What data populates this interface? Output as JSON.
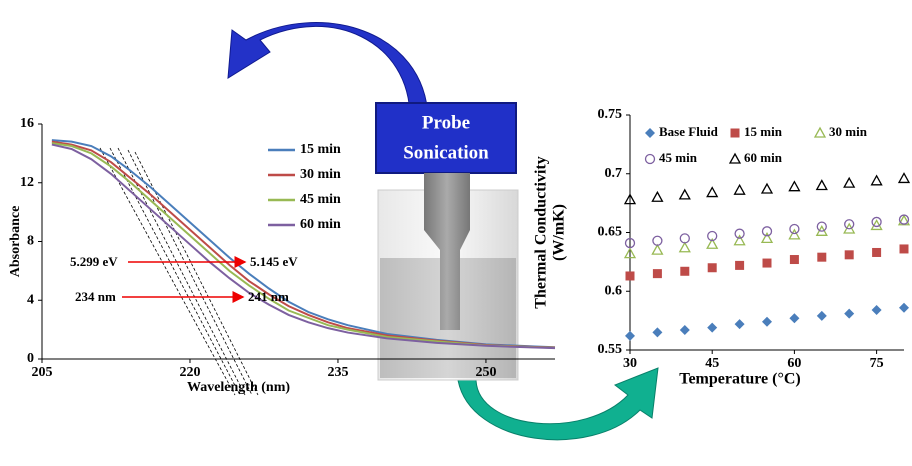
{
  "chart_data": [
    {
      "type": "line",
      "xlabel": "Wavelength (nm)",
      "ylabel": "Absorbance",
      "x": [
        206,
        208,
        210,
        212,
        214,
        216,
        218,
        220,
        222,
        224,
        226,
        228,
        230,
        232,
        234,
        236,
        240,
        245,
        250,
        255,
        257
      ],
      "xlim": [
        205,
        257
      ],
      "xticks": [
        205,
        220,
        235,
        250
      ],
      "ylim": [
        0,
        16
      ],
      "yticks": [
        0,
        4,
        8,
        12,
        16
      ],
      "annotations": [
        "5.299 eV",
        "5.145 eV",
        "234 nm",
        "241 nm"
      ],
      "series": [
        {
          "name": "15 min",
          "color": "#4a7ebb",
          "values": [
            14.9,
            14.8,
            14.5,
            13.8,
            12.8,
            11.7,
            10.5,
            9.3,
            8.1,
            6.9,
            5.8,
            4.8,
            3.9,
            3.2,
            2.7,
            2.3,
            1.7,
            1.3,
            1.0,
            0.85,
            0.8
          ]
        },
        {
          "name": "30 min",
          "color": "#be4b48",
          "values": [
            14.8,
            14.6,
            14.2,
            13.4,
            12.3,
            11.2,
            10.0,
            8.8,
            7.6,
            6.4,
            5.3,
            4.4,
            3.6,
            3.0,
            2.5,
            2.1,
            1.6,
            1.25,
            0.95,
            0.82,
            0.78
          ]
        },
        {
          "name": "45 min",
          "color": "#98b954",
          "values": [
            14.7,
            14.5,
            14.0,
            13.1,
            12.0,
            10.8,
            9.6,
            8.4,
            7.2,
            6.0,
            5.0,
            4.1,
            3.3,
            2.8,
            2.3,
            2.0,
            1.5,
            1.2,
            0.92,
            0.8,
            0.76
          ]
        },
        {
          "name": "60 min",
          "color": "#7d60a0",
          "values": [
            14.6,
            14.3,
            13.6,
            12.6,
            11.4,
            10.2,
            9.0,
            7.8,
            6.6,
            5.5,
            4.5,
            3.7,
            3.0,
            2.5,
            2.1,
            1.8,
            1.4,
            1.1,
            0.9,
            0.78,
            0.74
          ]
        }
      ]
    },
    {
      "type": "scatter",
      "xlabel": "Temperature (°C)",
      "ylabel": [
        "Thermal Conductivity",
        "(W/mK)"
      ],
      "x": [
        30,
        35,
        40,
        45,
        50,
        55,
        60,
        65,
        70,
        75,
        80
      ],
      "xlim": [
        30,
        80
      ],
      "xticks": [
        30,
        45,
        60,
        75
      ],
      "ylim": [
        0.55,
        0.75
      ],
      "yticks": [
        0.55,
        0.6,
        0.65,
        0.7,
        0.75
      ],
      "series": [
        {
          "name": "Base Fluid",
          "color": "#4a7ebb",
          "marker": "diamond",
          "values": [
            0.562,
            0.565,
            0.567,
            0.569,
            0.572,
            0.574,
            0.577,
            0.579,
            0.581,
            0.584,
            0.586
          ]
        },
        {
          "name": "15 min",
          "color": "#be4b48",
          "marker": "square",
          "values": [
            0.613,
            0.615,
            0.617,
            0.62,
            0.622,
            0.624,
            0.627,
            0.629,
            0.631,
            0.633,
            0.636
          ]
        },
        {
          "name": "30 min",
          "color": "#98b954",
          "marker": "triangle",
          "values": [
            0.632,
            0.635,
            0.637,
            0.64,
            0.643,
            0.645,
            0.648,
            0.651,
            0.653,
            0.656,
            0.66
          ]
        },
        {
          "name": "45 min",
          "color": "#7d60a0",
          "marker": "circle",
          "values": [
            0.641,
            0.643,
            0.645,
            0.647,
            0.649,
            0.651,
            0.653,
            0.655,
            0.657,
            0.659,
            0.661
          ]
        },
        {
          "name": "60 min",
          "color": "#000000",
          "marker": "triangle",
          "values": [
            0.678,
            0.68,
            0.682,
            0.684,
            0.686,
            0.687,
            0.689,
            0.69,
            0.692,
            0.694,
            0.696
          ]
        }
      ]
    }
  ],
  "diagram": {
    "label": [
      "Probe",
      "Sonication"
    ]
  }
}
